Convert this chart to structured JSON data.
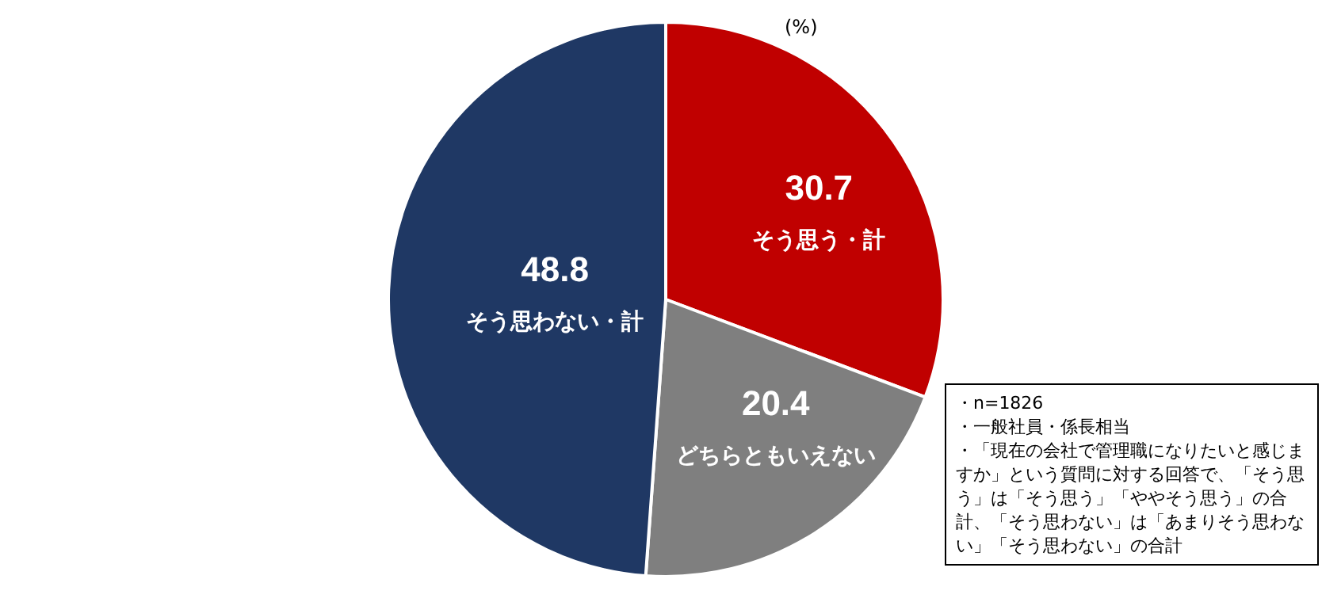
{
  "chart_data": {
    "type": "pie",
    "categories": [
      "そう思う・計",
      "どちらともいえない",
      "そう思わない・計"
    ],
    "values": [
      30.7,
      20.4,
      48.8
    ],
    "colors": [
      "#c00000",
      "#7f7f7f",
      "#1f3864"
    ],
    "data_labels": true,
    "legend": false,
    "annotations": [
      "(%)",
      "・n=1826",
      "・一般社員・係長相当",
      "・「現在の会社で管理職になりたいと感じますか」という質問に対する回答で、「そう思う」は「そう思う」「ややそう思う」の合計、「そう思わない」は「あまりそう思わない」「そう思わない」の合計"
    ]
  }
}
